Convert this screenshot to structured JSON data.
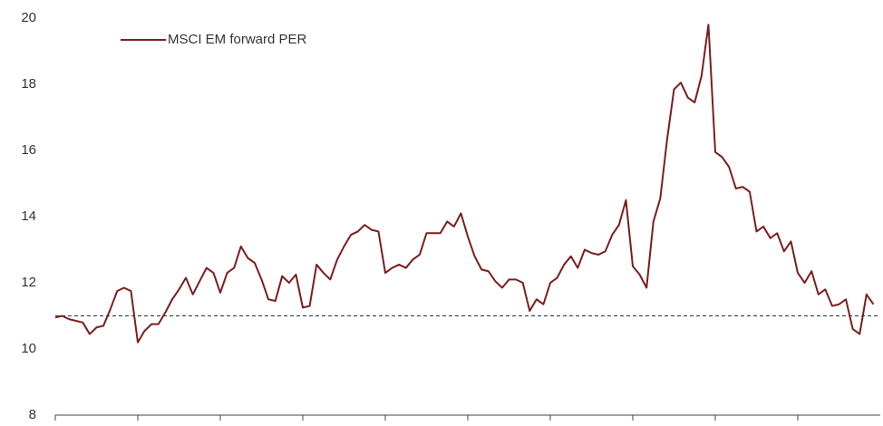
{
  "chart_data": {
    "type": "line",
    "series": [
      {
        "name": "MSCI EM forward PER",
        "color": "#7b1e1e",
        "x": [
          2013,
          2013.083,
          2013.167,
          2013.25,
          2013.333,
          2013.417,
          2013.5,
          2013.583,
          2013.667,
          2013.75,
          2013.833,
          2013.917,
          2014,
          2014.083,
          2014.167,
          2014.25,
          2014.333,
          2014.417,
          2014.5,
          2014.583,
          2014.667,
          2014.75,
          2014.833,
          2014.917,
          2015,
          2015.083,
          2015.167,
          2015.25,
          2015.333,
          2015.417,
          2015.5,
          2015.583,
          2015.667,
          2015.75,
          2015.833,
          2015.917,
          2016,
          2016.083,
          2016.167,
          2016.25,
          2016.333,
          2016.417,
          2016.5,
          2016.583,
          2016.667,
          2016.75,
          2016.833,
          2016.917,
          2017,
          2017.083,
          2017.167,
          2017.25,
          2017.333,
          2017.417,
          2017.5,
          2017.583,
          2017.667,
          2017.75,
          2017.833,
          2017.917,
          2018,
          2018.083,
          2018.167,
          2018.25,
          2018.333,
          2018.417,
          2018.5,
          2018.583,
          2018.667,
          2018.75,
          2018.833,
          2018.917,
          2019,
          2019.083,
          2019.167,
          2019.25,
          2019.333,
          2019.417,
          2019.5,
          2019.583,
          2019.667,
          2019.75,
          2019.833,
          2019.917,
          2020,
          2020.083,
          2020.167,
          2020.25,
          2020.333,
          2020.417,
          2020.5,
          2020.583,
          2020.667,
          2020.75,
          2020.833,
          2020.917,
          2021,
          2021.083,
          2021.167,
          2021.25,
          2021.333,
          2021.417,
          2021.5,
          2021.583,
          2021.667,
          2021.75,
          2021.833,
          2021.917,
          2022,
          2022.083,
          2022.167,
          2022.25,
          2022.333,
          2022.417,
          2022.5,
          2022.583,
          2022.667,
          2022.75,
          2022.833,
          2022.917
        ],
        "values": [
          10.95,
          11.0,
          10.9,
          10.85,
          10.8,
          10.45,
          10.65,
          10.7,
          11.2,
          11.75,
          11.85,
          11.75,
          10.2,
          10.55,
          10.75,
          10.75,
          11.1,
          11.5,
          11.8,
          12.15,
          11.65,
          12.05,
          12.45,
          12.3,
          11.7,
          12.3,
          12.45,
          13.1,
          12.75,
          12.6,
          12.1,
          11.5,
          11.45,
          12.2,
          12.0,
          12.25,
          11.25,
          11.3,
          12.55,
          12.3,
          12.1,
          12.7,
          13.1,
          13.45,
          13.55,
          13.75,
          13.6,
          13.55,
          12.3,
          12.45,
          12.55,
          12.45,
          12.7,
          12.85,
          13.5,
          13.5,
          13.5,
          13.85,
          13.7,
          14.1,
          13.4,
          12.8,
          12.4,
          12.35,
          12.05,
          11.85,
          12.1,
          12.1,
          12.0,
          11.15,
          11.5,
          11.35,
          12.0,
          12.15,
          12.55,
          12.8,
          12.45,
          13.0,
          12.9,
          12.85,
          12.95,
          13.45,
          13.75,
          14.5,
          12.5,
          12.25,
          11.85,
          13.85,
          14.55,
          16.35,
          17.85,
          18.05,
          17.6,
          17.45,
          18.25,
          19.8,
          15.95,
          15.8,
          15.5,
          14.85,
          14.9,
          14.75,
          13.55,
          13.7,
          13.35,
          13.5,
          12.95,
          13.25,
          12.3,
          12.0,
          12.35,
          11.65,
          11.8,
          11.3,
          11.35,
          11.5,
          10.6,
          10.45,
          11.65,
          11.35
        ]
      }
    ],
    "reference_line": 11,
    "xlim": [
      2013,
      2023
    ],
    "xticks": [
      2013,
      2014,
      2015,
      2016,
      2017,
      2018,
      2019,
      2020,
      2021,
      2022
    ],
    "ylim": [
      8,
      20
    ],
    "yticks": [
      8,
      10,
      12,
      14,
      16,
      18,
      20
    ],
    "legend": "top-left"
  }
}
